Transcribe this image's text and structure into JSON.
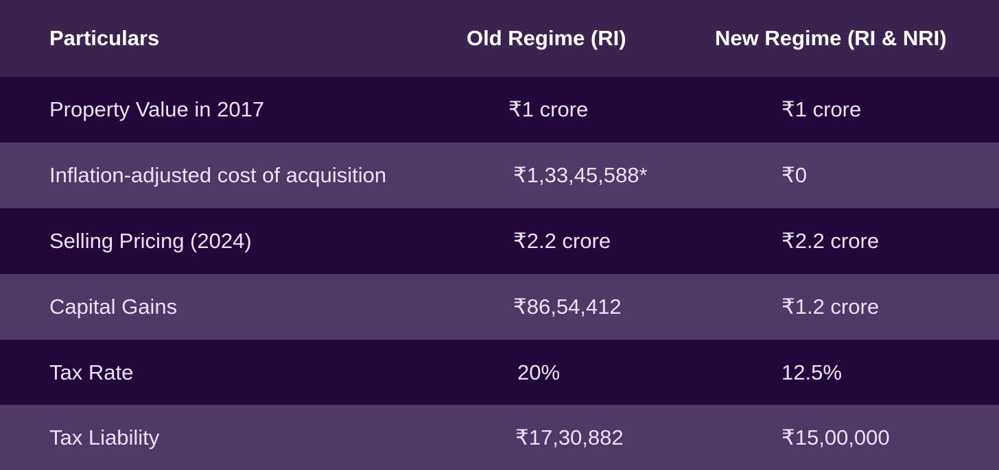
{
  "table": {
    "headers": [
      "Particulars",
      "Old Regime (RI)",
      "New Regime (RI & NRI)"
    ],
    "rows": [
      [
        "Property Value in 2017",
        "₹1 crore",
        "₹1 crore"
      ],
      [
        "Inflation-adjusted cost of acquisition",
        "₹1,33,45,588*",
        "₹0"
      ],
      [
        "Selling Pricing (2024)",
        "₹2.2 crore",
        "₹2.2 crore"
      ],
      [
        "Capital Gains",
        "₹86,54,412",
        "₹1.2 crore"
      ],
      [
        "Tax Rate",
        "20%",
        "12.5%"
      ],
      [
        "Tax Liability",
        "₹17,30,882",
        "₹15,00,000"
      ]
    ]
  },
  "colors": {
    "header_bg": "#3b2350",
    "row_dark": "#22073c",
    "row_light": "#4f3966",
    "text": "#e9e2f1"
  }
}
